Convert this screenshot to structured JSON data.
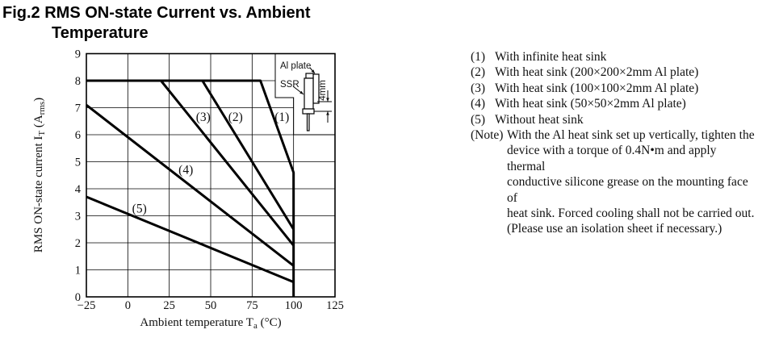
{
  "title": {
    "line1": "Fig.2 RMS ON-state Current vs. Ambient",
    "line2": "Temperature"
  },
  "chart_data": {
    "type": "line",
    "title": "Fig.2 RMS ON-state Current vs. Ambient Temperature",
    "xlabel": "Ambient temperature Ta (°C)",
    "ylabel": "RMS ON-state current IT (Arms)",
    "xlabel_parts": [
      {
        "t": "Ambient temperature T"
      },
      {
        "t": "a",
        "sub": true
      },
      {
        "t": " (°C)"
      }
    ],
    "ylabel_parts": [
      {
        "t": "RMS ON-state current I"
      },
      {
        "t": "T",
        "sub": true
      },
      {
        "t": " (A"
      },
      {
        "t": "rms",
        "sub": true
      },
      {
        "t": ")"
      }
    ],
    "xlim": [
      -25,
      125
    ],
    "ylim": [
      0,
      9
    ],
    "xticks": [
      -25,
      0,
      25,
      50,
      75,
      100,
      125
    ],
    "yticks": [
      0,
      1,
      2,
      3,
      4,
      5,
      6,
      7,
      8,
      9
    ],
    "grid": true,
    "legend_position": "right-text-block",
    "series": [
      {
        "name": "(1) With infinite heat sink",
        "label": "(1)",
        "label_at": [
          93,
          6.65
        ],
        "points": [
          [
            -25,
            8
          ],
          [
            80,
            8
          ],
          [
            100,
            4.6
          ],
          [
            100,
            0
          ]
        ]
      },
      {
        "name": "(2) With heat sink (200×200×2mm Al plate)",
        "label": "(2)",
        "label_at": [
          65,
          6.65
        ],
        "points": [
          [
            -25,
            8
          ],
          [
            45,
            8
          ],
          [
            100,
            2.5
          ]
        ]
      },
      {
        "name": "(3) With heat sink (100×100×2mm Al plate)",
        "label": "(3)",
        "label_at": [
          45.5,
          6.65
        ],
        "points": [
          [
            -25,
            8
          ],
          [
            20,
            8
          ],
          [
            100,
            1.9
          ]
        ]
      },
      {
        "name": "(4) With heat sink (50×50×2mm Al plate)",
        "label": "(4)",
        "label_at": [
          35,
          4.7
        ],
        "points": [
          [
            -25,
            7.1
          ],
          [
            100,
            1.15
          ]
        ]
      },
      {
        "name": "(5) Without heat sink",
        "label": "(5)",
        "label_at": [
          7,
          3.27
        ],
        "points": [
          [
            -25,
            3.7
          ],
          [
            100,
            0.55
          ]
        ]
      }
    ]
  },
  "inset": {
    "labels": {
      "al_plate": "Al plate",
      "ssr": "SSR",
      "dim": "4mm"
    }
  },
  "legend": {
    "items": [
      {
        "marker": "(1)",
        "text": "With infinite heat sink"
      },
      {
        "marker": "(2)",
        "text": "With heat sink (200×200×2mm Al plate)"
      },
      {
        "marker": "(3)",
        "text": "With heat sink (100×100×2mm Al plate)"
      },
      {
        "marker": "(4)",
        "text": "With heat sink (50×50×2mm Al plate)"
      },
      {
        "marker": "(5)",
        "text": "Without heat sink"
      }
    ],
    "note": {
      "marker": "(Note)",
      "lines": [
        "With the Al heat sink set up vertically, tighten the",
        "device with a torque of 0.4N•m and apply thermal",
        "conductive silicone grease on the mounting face of",
        "heat sink. Forced cooling shall not be carried out.",
        "(Please use an isolation sheet if necessary.)"
      ]
    }
  },
  "colors": {
    "ink": "#111111",
    "background": "#ffffff"
  }
}
